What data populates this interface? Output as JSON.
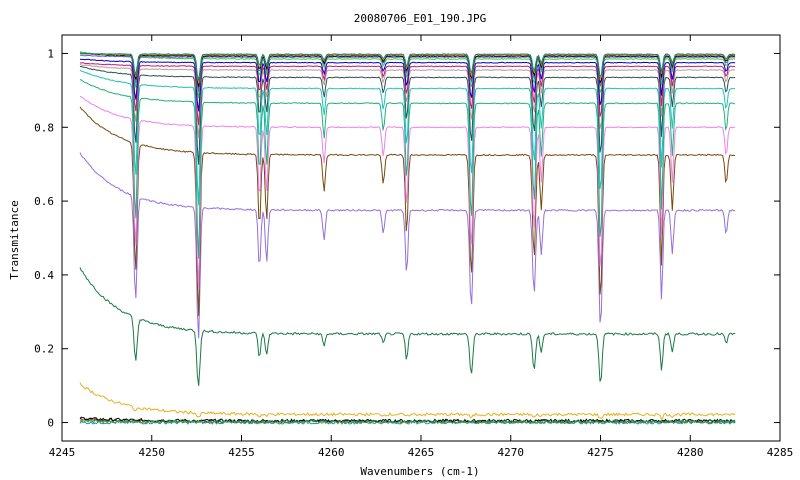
{
  "chart_data": {
    "type": "line",
    "title": "20080706_E01_190.JPG",
    "xlabel": "Wavenumbers (cm-1)",
    "ylabel": "Transmitance",
    "xlim": [
      4245,
      4285
    ],
    "ylim": [
      -0.05,
      1.05
    ],
    "xticks": [
      4245,
      4250,
      4255,
      4260,
      4265,
      4270,
      4275,
      4280,
      4285
    ],
    "yticks": [
      0,
      0.2,
      0.4,
      0.6,
      0.8,
      1
    ],
    "ytick_labels": [
      "0",
      "0.2",
      "0.4",
      "0.6",
      "0.8",
      "1"
    ],
    "grid": false,
    "x_range_data": [
      4246,
      4282.5
    ],
    "absorption_lines": [
      {
        "x": 4249.1,
        "rel_depth": 0.35,
        "width": 0.12
      },
      {
        "x": 4252.6,
        "rel_depth": 0.45,
        "width": 0.12
      },
      {
        "x": 4256.0,
        "rel_depth": 0.2,
        "width": 0.1
      },
      {
        "x": 4256.4,
        "rel_depth": 0.18,
        "width": 0.1
      },
      {
        "x": 4259.6,
        "rel_depth": 0.1,
        "width": 0.1
      },
      {
        "x": 4262.9,
        "rel_depth": 0.08,
        "width": 0.1
      },
      {
        "x": 4264.2,
        "rel_depth": 0.22,
        "width": 0.1
      },
      {
        "x": 4267.8,
        "rel_depth": 0.33,
        "width": 0.12
      },
      {
        "x": 4271.3,
        "rel_depth": 0.28,
        "width": 0.12
      },
      {
        "x": 4271.7,
        "rel_depth": 0.15,
        "width": 0.1
      },
      {
        "x": 4275.0,
        "rel_depth": 0.4,
        "width": 0.12
      },
      {
        "x": 4278.4,
        "rel_depth": 0.3,
        "width": 0.1
      },
      {
        "x": 4279.0,
        "rel_depth": 0.15,
        "width": 0.1
      },
      {
        "x": 4282.0,
        "rel_depth": 0.08,
        "width": 0.1
      }
    ],
    "series": [
      {
        "color": "#7f2a1a",
        "baseline": 0.003,
        "start": 0.01
      },
      {
        "color": "#000000",
        "baseline": 0.005,
        "start": 0.012
      },
      {
        "color": "#1e90c8",
        "baseline": 0.0,
        "start": 0.0
      },
      {
        "color": "#33a02c",
        "baseline": 0.002,
        "start": 0.004
      },
      {
        "color": "#e8b020",
        "baseline": 0.022,
        "start": 0.105
      },
      {
        "color": "#1b7a45",
        "baseline": 0.24,
        "start": 0.42
      },
      {
        "color": "#9370db",
        "baseline": 0.575,
        "start": 0.73
      },
      {
        "color": "#7a4a10",
        "baseline": 0.725,
        "start": 0.855
      },
      {
        "color": "#ee82ee",
        "baseline": 0.8,
        "start": 0.885
      },
      {
        "color": "#20b27a",
        "baseline": 0.865,
        "start": 0.93
      },
      {
        "color": "#20c0c0",
        "baseline": 0.905,
        "start": 0.955
      },
      {
        "color": "#2f4f4f",
        "baseline": 0.935,
        "start": 0.965
      },
      {
        "color": "#b0a090",
        "baseline": 0.955,
        "start": 0.97
      },
      {
        "color": "#c71585",
        "baseline": 0.965,
        "start": 0.975
      },
      {
        "color": "#0000cd",
        "baseline": 0.975,
        "start": 0.985
      },
      {
        "color": "#32cd32",
        "baseline": 0.985,
        "start": 1.005
      },
      {
        "color": "#6a5acd",
        "baseline": 0.99,
        "start": 0.995
      },
      {
        "color": "#000000",
        "baseline": 0.993,
        "start": 1.0
      },
      {
        "color": "#ff7f00",
        "baseline": 0.996,
        "start": 1.0
      },
      {
        "color": "#008b8b",
        "baseline": 0.998,
        "start": 1.0
      }
    ]
  }
}
